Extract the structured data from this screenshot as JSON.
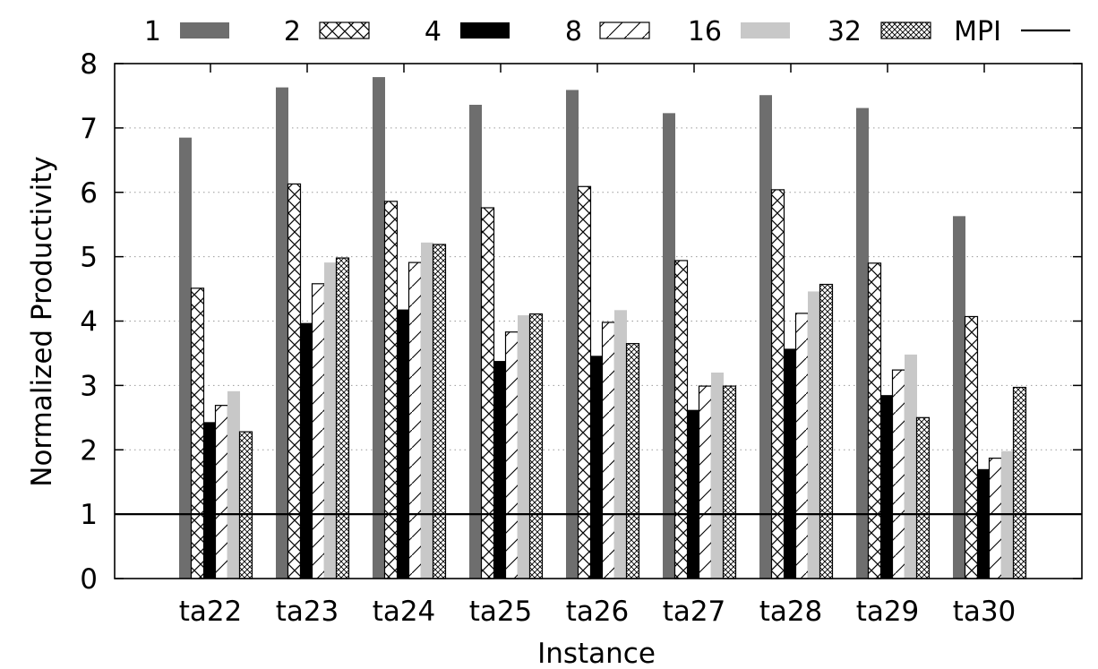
{
  "chart_data": {
    "type": "bar",
    "title": "",
    "xlabel": "Instance",
    "ylabel": "Normalized Productivity",
    "ylim": [
      0,
      8
    ],
    "yticks": [
      "0",
      "1",
      "2",
      "3",
      "4",
      "5",
      "6",
      "7",
      "8"
    ],
    "grid": "horizontal dotted",
    "legend_position": "top",
    "categories": [
      "ta22",
      "ta23",
      "ta24",
      "ta25",
      "ta26",
      "ta27",
      "ta28",
      "ta29",
      "ta30"
    ],
    "series": [
      {
        "name": "1",
        "pattern": "solid-dark-gray",
        "color": "#6e6e6e",
        "values": [
          6.85,
          7.63,
          7.79,
          7.36,
          7.59,
          7.23,
          7.51,
          7.31,
          5.63
        ]
      },
      {
        "name": "2",
        "pattern": "crosshatch",
        "color": "#000000",
        "values": [
          4.51,
          6.13,
          5.86,
          5.76,
          6.09,
          4.94,
          6.04,
          4.9,
          4.07
        ]
      },
      {
        "name": "4",
        "pattern": "solid-black",
        "color": "#000000",
        "values": [
          2.43,
          3.97,
          4.18,
          3.38,
          3.46,
          2.62,
          3.57,
          2.85,
          1.7
        ]
      },
      {
        "name": "8",
        "pattern": "diagonal",
        "color": "#000000",
        "values": [
          2.69,
          4.58,
          4.91,
          3.83,
          3.98,
          2.99,
          4.12,
          3.24,
          1.87
        ]
      },
      {
        "name": "16",
        "pattern": "solid-light-gray",
        "color": "#c8c8c8",
        "values": [
          2.91,
          4.91,
          5.22,
          4.09,
          4.17,
          3.2,
          4.46,
          3.48,
          1.98
        ]
      },
      {
        "name": "32",
        "pattern": "fine-crosshatch",
        "color": "#000000",
        "values": [
          2.28,
          4.98,
          5.19,
          4.11,
          3.65,
          2.99,
          4.57,
          2.5,
          2.97
        ]
      }
    ],
    "reference_line": {
      "name": "MPI",
      "value": 1
    }
  }
}
